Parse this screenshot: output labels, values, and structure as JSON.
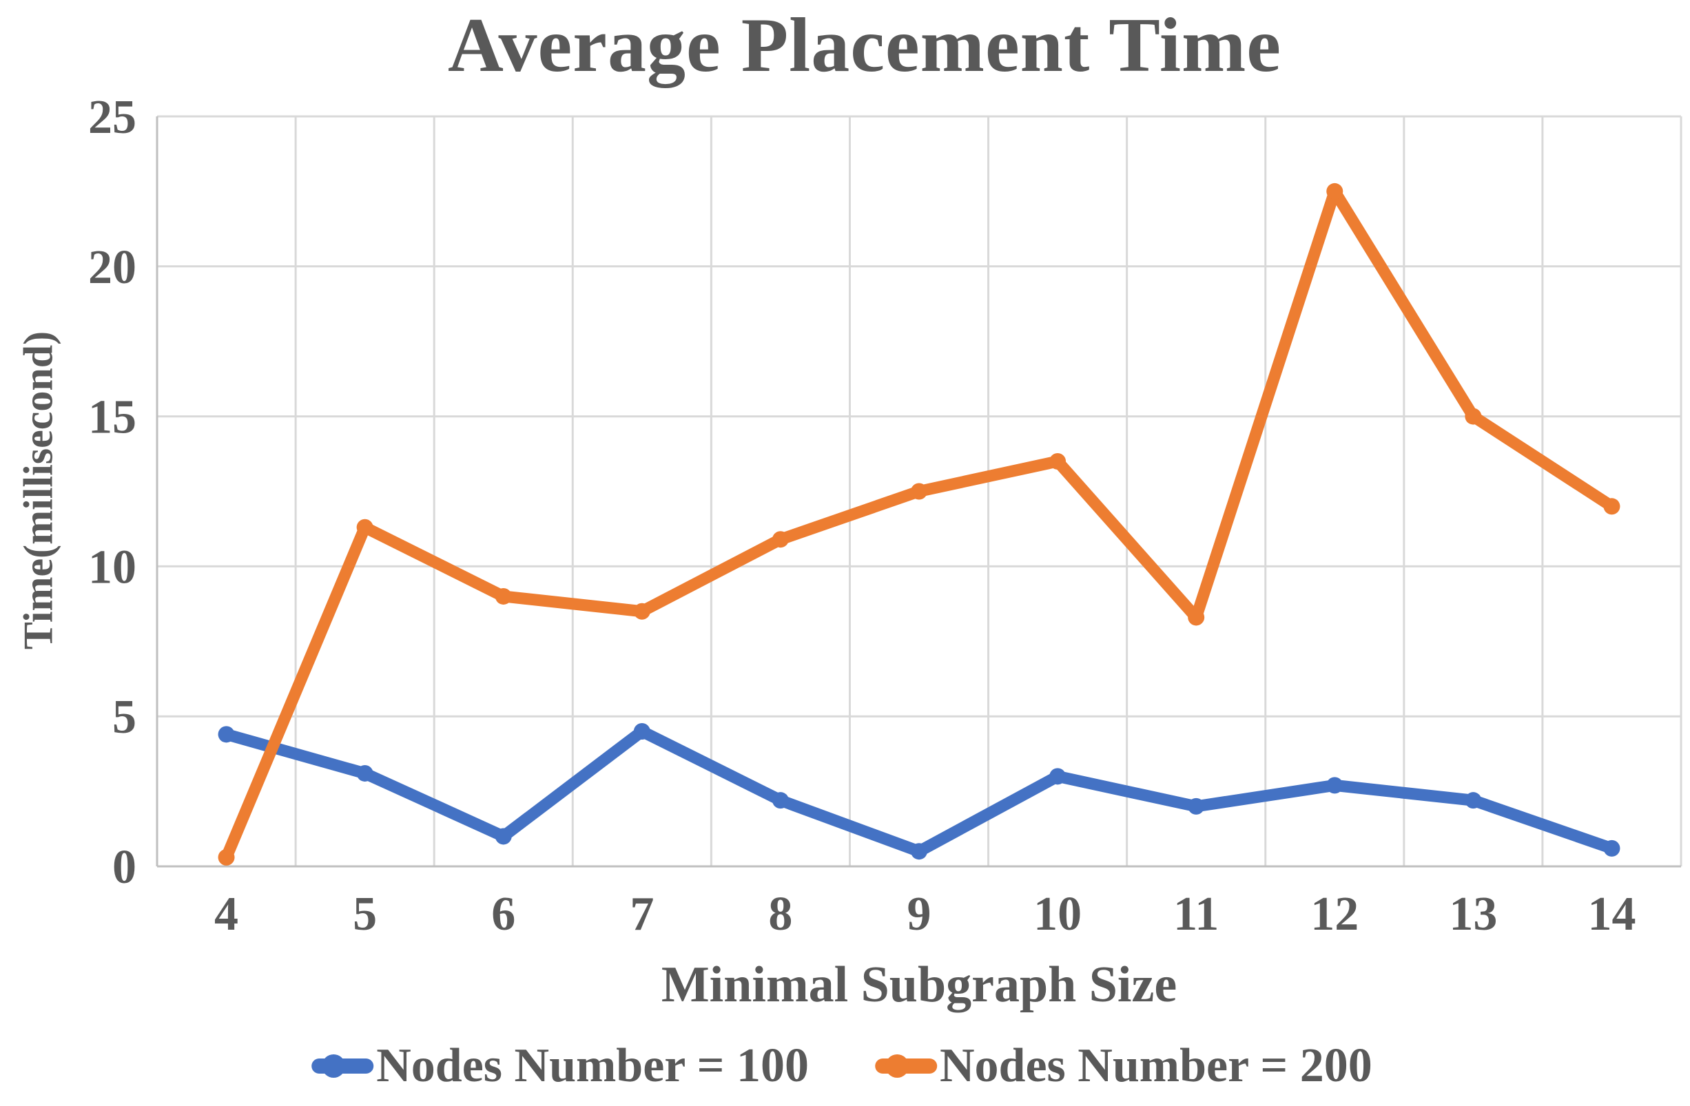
{
  "title": "Average Placement Time",
  "axes": {
    "y_label": "Time(millisecond)",
    "x_label": "Minimal Subgraph Size"
  },
  "legend": {
    "items": [
      {
        "label": "Nodes Number = 100",
        "color": "#4472C4"
      },
      {
        "label": "Nodes Number = 200",
        "color": "#ED7D31"
      }
    ]
  },
  "colors": {
    "text": "#595959",
    "gridline": "#D9D9D9",
    "axis_line": "#BFBFBF",
    "series_blue": "#4472C4",
    "series_orange": "#ED7D31",
    "background": "#FFFFFF"
  },
  "chart_data": {
    "type": "line",
    "x": [
      4,
      5,
      6,
      7,
      8,
      9,
      10,
      11,
      12,
      13,
      14
    ],
    "series": [
      {
        "name": "Nodes Number = 100",
        "color": "#4472C4",
        "values": [
          4.4,
          3.1,
          1.0,
          4.5,
          2.2,
          0.5,
          3.0,
          2.0,
          2.7,
          2.2,
          0.6
        ]
      },
      {
        "name": "Nodes Number = 200",
        "color": "#ED7D31",
        "values": [
          0.3,
          11.3,
          9.0,
          8.5,
          10.9,
          12.5,
          13.5,
          8.3,
          22.5,
          15.0,
          12.0
        ]
      }
    ],
    "title": "Average Placement Time",
    "xlabel": "Minimal Subgraph Size",
    "ylabel": "Time(millisecond)",
    "ylim": [
      0,
      25
    ],
    "yticks": [
      0,
      5,
      10,
      15,
      20,
      25
    ],
    "grid": true,
    "legend_position": "bottom",
    "marker": "circle",
    "line_width": 17
  }
}
